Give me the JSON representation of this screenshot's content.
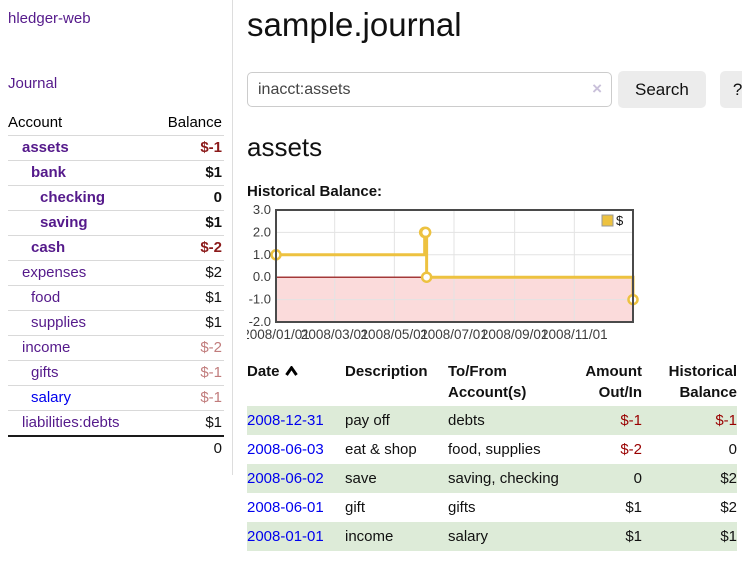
{
  "sidebar": {
    "app_title": "hledger-web",
    "nav": {
      "journal_label": "Journal"
    },
    "accounts_table": {
      "account_header": "Account",
      "balance_header": "Balance",
      "accounts": [
        {
          "name": "assets",
          "depth": 1,
          "bold": true,
          "balance": "$-1"
        },
        {
          "name": "bank",
          "depth": 2,
          "bold": true,
          "balance": "$1"
        },
        {
          "name": "checking",
          "depth": 3,
          "bold": true,
          "balance": "0"
        },
        {
          "name": "saving",
          "depth": 3,
          "bold": true,
          "balance": "$1"
        },
        {
          "name": "cash",
          "depth": 2,
          "bold": true,
          "balance": "$-2"
        },
        {
          "name": "expenses",
          "depth": 1,
          "bold": false,
          "balance": "$2"
        },
        {
          "name": "food",
          "depth": 2,
          "bold": false,
          "balance": "$1"
        },
        {
          "name": "supplies",
          "depth": 2,
          "bold": false,
          "balance": "$1"
        },
        {
          "name": "income",
          "depth": 1,
          "bold": false,
          "balance": "$-2"
        },
        {
          "name": "gifts",
          "depth": 2,
          "bold": false,
          "balance": "$-1"
        },
        {
          "name": "salary",
          "depth": 2,
          "bold": false,
          "balance": "$-1",
          "unvisited": true
        },
        {
          "name": "liabilities:debts",
          "depth": 1,
          "bold": false,
          "balance": "$1"
        }
      ],
      "total": "0"
    }
  },
  "header": {
    "title": "sample.journal"
  },
  "search": {
    "query": "inacct:assets",
    "clear_icon": "×",
    "search_label": "Search",
    "help_label": "?"
  },
  "account_page": {
    "heading": "assets",
    "chart_label": "Historical Balance:"
  },
  "chart_data": {
    "type": "line",
    "step": true,
    "title": "Historical Balance",
    "series": [
      {
        "name": "$",
        "color": "#edc240",
        "points": [
          {
            "date": "2008-01-01",
            "day": 0,
            "value": 1
          },
          {
            "date": "2008-06-01",
            "day": 152,
            "value": 2
          },
          {
            "date": "2008-06-02",
            "day": 153,
            "value": 2
          },
          {
            "date": "2008-06-03",
            "day": 154,
            "value": 0
          },
          {
            "date": "2008-12-31",
            "day": 365,
            "value": -1
          }
        ]
      }
    ],
    "xlim": [
      0,
      365
    ],
    "ylim": [
      -2,
      3
    ],
    "x_ticks": [
      {
        "day": 0,
        "label": "2008/01/01"
      },
      {
        "day": 60,
        "label": "2008/03/01"
      },
      {
        "day": 121,
        "label": "2008/05/01"
      },
      {
        "day": 182,
        "label": "2008/07/01"
      },
      {
        "day": 244,
        "label": "2008/09/01"
      },
      {
        "day": 305,
        "label": "2008/11/01"
      }
    ],
    "y_ticks": [
      {
        "v": 3,
        "label": "3.0"
      },
      {
        "v": 2,
        "label": "2.0"
      },
      {
        "v": 1,
        "label": "1.0"
      },
      {
        "v": 0,
        "label": "0.0"
      },
      {
        "v": -1,
        "label": "-1.0"
      },
      {
        "v": -2,
        "label": "-2.0"
      }
    ],
    "legend": {
      "label": "$",
      "position": "top-right"
    },
    "grid": true,
    "colors": {
      "border": "#4a4a4a",
      "grid": "#e3e3e3",
      "zero_line": "#8b0000",
      "negative_region": "#fbdbdb",
      "tick_text": "#3c3c3c"
    }
  },
  "register": {
    "columns": {
      "date": "Date",
      "description": "Description",
      "tofrom_line1": "To/From",
      "tofrom_line2": "Account(s)",
      "amount_line1": "Amount",
      "amount_line2": "Out/In",
      "balance_line1": "Historical",
      "balance_line2": "Balance"
    },
    "rows": [
      {
        "date": "2008-12-31",
        "description": "pay off",
        "accounts": "debts",
        "amount": "$-1",
        "balance": "$-1"
      },
      {
        "date": "2008-06-03",
        "description": "eat & shop",
        "accounts": "food, supplies",
        "amount": "$-2",
        "balance": "0"
      },
      {
        "date": "2008-06-02",
        "description": "save",
        "accounts": "saving, checking",
        "amount": "0",
        "balance": "$2"
      },
      {
        "date": "2008-06-01",
        "description": "gift",
        "accounts": "gifts",
        "amount": "$1",
        "balance": "$2"
      },
      {
        "date": "2008-01-01",
        "description": "income",
        "accounts": "salary",
        "amount": "$1",
        "balance": "$1"
      }
    ]
  }
}
